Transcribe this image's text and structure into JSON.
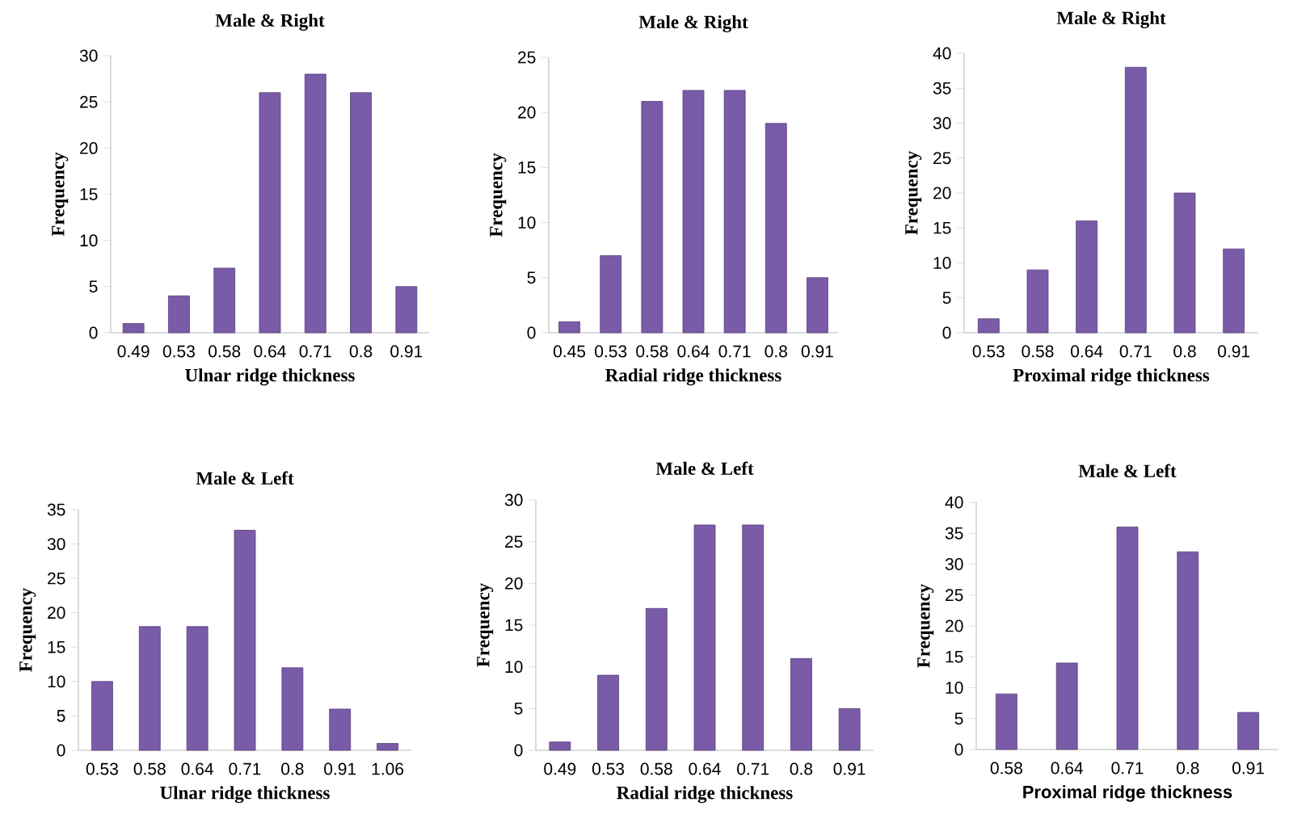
{
  "chart_data": [
    {
      "type": "bar",
      "title": "Male & Right",
      "xlabel": "Ulnar  ridge thickness",
      "ylabel": "Frequency",
      "categories": [
        "0.49",
        "0.53",
        "0.58",
        "0.64",
        "0.71",
        "0.8",
        "0.91"
      ],
      "values": [
        1,
        4,
        7,
        26,
        28,
        26,
        5
      ],
      "color": "#7a5ba8",
      "ylim": [
        0,
        30
      ],
      "yticks": [
        0,
        5,
        10,
        15,
        20,
        25,
        30
      ]
    },
    {
      "type": "bar",
      "title": "Male & Right",
      "xlabel": "Radial ridge thickness",
      "ylabel": "Frequency",
      "categories": [
        "0.45",
        "0.53",
        "0.58",
        "0.64",
        "0.71",
        "0.8",
        "0.91"
      ],
      "values": [
        1,
        7,
        21,
        22,
        22,
        19,
        5
      ],
      "color": "#7a5ba8",
      "ylim": [
        0,
        25
      ],
      "yticks": [
        0,
        5,
        10,
        15,
        20,
        25
      ]
    },
    {
      "type": "bar",
      "title": "Male & Right",
      "xlabel": "Proximal ridge thickness",
      "ylabel": "Frequency",
      "categories": [
        "0.53",
        "0.58",
        "0.64",
        "0.71",
        "0.8",
        "0.91"
      ],
      "values": [
        2,
        9,
        16,
        38,
        20,
        12
      ],
      "color": "#7a5ba8",
      "ylim": [
        0,
        40
      ],
      "yticks": [
        0,
        5,
        10,
        15,
        20,
        25,
        30,
        35,
        40
      ]
    },
    {
      "type": "bar",
      "title": "Male & Left",
      "xlabel": "Ulnar ridge thickness",
      "ylabel": "Frequency",
      "categories": [
        "0.53",
        "0.58",
        "0.64",
        "0.71",
        "0.8",
        "0.91",
        "1.06"
      ],
      "values": [
        10,
        18,
        18,
        32,
        12,
        6,
        1
      ],
      "color": "#7a5ba8",
      "ylim": [
        0,
        35
      ],
      "yticks": [
        0,
        5,
        10,
        15,
        20,
        25,
        30,
        35
      ]
    },
    {
      "type": "bar",
      "title": "Male & Left",
      "xlabel": "Radial ridge thickness",
      "ylabel": "Frequency",
      "categories": [
        "0.49",
        "0.53",
        "0.58",
        "0.64",
        "0.71",
        "0.8",
        "0.91"
      ],
      "values": [
        1,
        9,
        17,
        27,
        27,
        11,
        5
      ],
      "color": "#7a5ba8",
      "ylim": [
        0,
        30
      ],
      "yticks": [
        0,
        5,
        10,
        15,
        20,
        25,
        30
      ]
    },
    {
      "type": "bar",
      "title": "Male & Left",
      "xlabel": "Proximal ridge thickness",
      "ylabel": "Frequency",
      "categories": [
        "0.58",
        "0.64",
        "0.71",
        "0.8",
        "0.91"
      ],
      "values": [
        9,
        14,
        36,
        32,
        6
      ],
      "color": "#7a5ba8",
      "ylim": [
        0,
        40
      ],
      "yticks": [
        0,
        5,
        10,
        15,
        20,
        25,
        30,
        35,
        40
      ]
    }
  ]
}
